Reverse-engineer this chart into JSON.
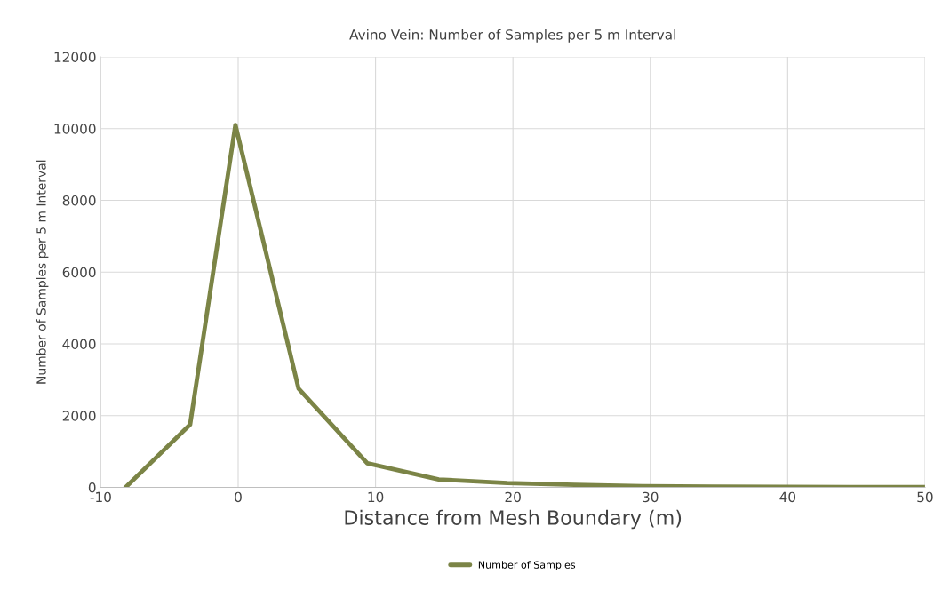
{
  "chart_data": {
    "type": "line",
    "title": "Avino Vein: Number of Samples per 5 m Interval",
    "xlabel": "Distance from Mesh Boundary (m)",
    "ylabel": "Number of Samples per 5 m Interval",
    "series": [
      {
        "name": "Number of Samples",
        "color": "#7b8446",
        "x": [
          -8.2,
          -3.5,
          -0.2,
          4.4,
          9.4,
          14.6,
          19.6,
          24.5,
          29.4,
          34.5,
          39.5,
          44.5,
          50
        ],
        "values": [
          0,
          1750,
          10100,
          2750,
          670,
          220,
          120,
          70,
          30,
          20,
          15,
          10,
          10
        ]
      }
    ],
    "xlim": [
      -10,
      50
    ],
    "xticks": [
      -10,
      0,
      10,
      20,
      30,
      40,
      50
    ],
    "ylim": [
      0,
      12000
    ],
    "yticks": [
      0,
      2000,
      4000,
      6000,
      8000,
      10000,
      12000
    ],
    "grid": true,
    "legend": "bottom",
    "marker": "none",
    "line_style": "solid"
  }
}
